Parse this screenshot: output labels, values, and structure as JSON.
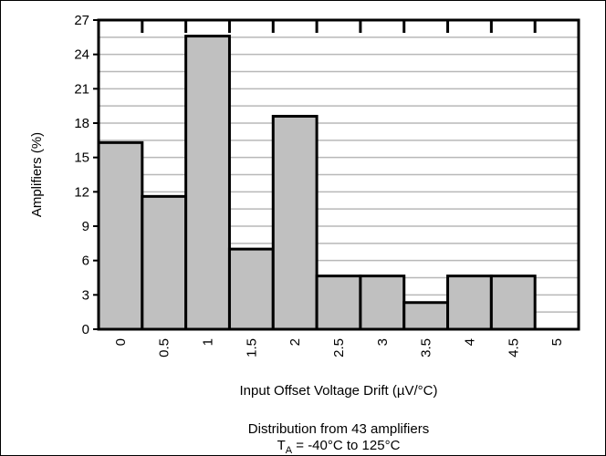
{
  "chart_data": {
    "type": "bar",
    "categories": [
      "0",
      "0.5",
      "1",
      "1.5",
      "2",
      "2.5",
      "3",
      "3.5",
      "4",
      "4.5",
      "5"
    ],
    "values": [
      16.3,
      11.6,
      25.6,
      7.0,
      18.6,
      4.65,
      4.65,
      2.33,
      4.65,
      4.65,
      0
    ],
    "xlabel": "Input Offset Voltage Drift (µV/°C)",
    "ylabel": "Amplifiers (%)",
    "ylim": [
      0,
      27
    ],
    "yticks": [
      0,
      3,
      6,
      9,
      12,
      15,
      18,
      21,
      24,
      27
    ],
    "grid": true,
    "bar_color": "#c0c0c0",
    "edge_color": "#000000",
    "note_line1": "Distribution from 43 amplifiers",
    "note_line2": {
      "prefix": "T",
      "subscript": "A",
      "suffix": " = -40°C to 125°C"
    }
  }
}
